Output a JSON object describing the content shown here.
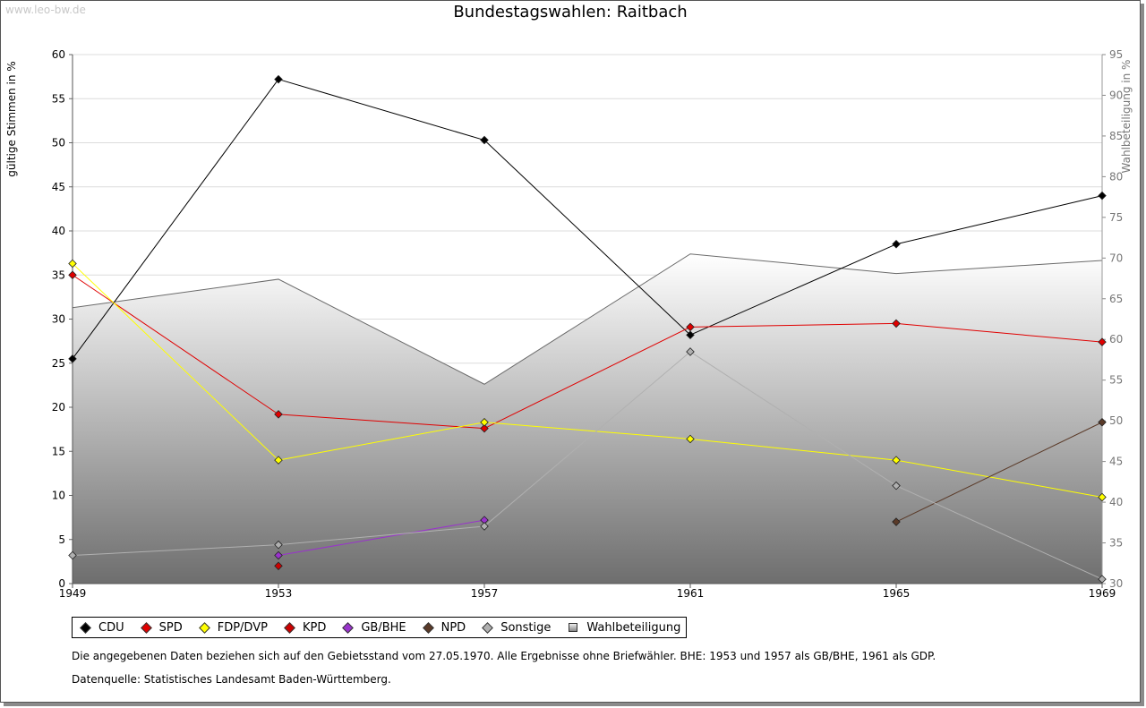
{
  "watermark": "www.leo-bw.de",
  "chart_data": {
    "type": "line",
    "title": "Bundestagswahlen: Raitbach",
    "ylabel": "gültige Stimmen in %",
    "y2label": "Wahlbeteiligung in %",
    "x": [
      1949,
      1953,
      1957,
      1961,
      1965,
      1969
    ],
    "ylim": [
      0,
      60
    ],
    "y2lim": [
      30,
      95
    ],
    "yticks": [
      0,
      5,
      10,
      15,
      20,
      25,
      30,
      35,
      40,
      45,
      50,
      55,
      60
    ],
    "y2ticks": [
      30,
      35,
      40,
      45,
      50,
      55,
      60,
      65,
      70,
      75,
      80,
      85,
      90,
      95
    ],
    "series": [
      {
        "name": "CDU",
        "color": "#000000",
        "values": [
          25.5,
          57.2,
          50.3,
          28.2,
          38.5,
          44.0
        ]
      },
      {
        "name": "SPD",
        "color": "#e00000",
        "values": [
          35.0,
          19.2,
          17.6,
          29.1,
          29.5,
          27.4
        ]
      },
      {
        "name": "FDP/DVP",
        "color": "#ffff00",
        "values": [
          36.3,
          14.0,
          18.3,
          16.4,
          14.0,
          9.8
        ]
      },
      {
        "name": "KPD",
        "color": "#cc0000",
        "values": [
          null,
          2.0,
          null,
          null,
          null,
          null
        ]
      },
      {
        "name": "GB/BHE",
        "color": "#9933cc",
        "values": [
          null,
          3.2,
          7.2,
          null,
          null,
          null
        ]
      },
      {
        "name": "NPD",
        "color": "#5a3a28",
        "values": [
          null,
          null,
          null,
          null,
          7.0,
          18.3
        ]
      },
      {
        "name": "Sonstige",
        "color": "#b0b0b0",
        "values": [
          3.2,
          4.4,
          6.5,
          26.3,
          11.1,
          0.5
        ]
      }
    ],
    "turnout": {
      "name": "Wahlbeteiligung",
      "axis": "right",
      "values": [
        63.9,
        67.4,
        54.5,
        70.5,
        68.1,
        69.7
      ]
    }
  },
  "legend": [
    "CDU",
    "SPD",
    "FDP/DVP",
    "KPD",
    "GB/BHE",
    "NPD",
    "Sonstige",
    "Wahlbeteiligung"
  ],
  "note": "Die angegebenen Daten beziehen sich auf den Gebietsstand vom 27.05.1970. Alle Ergebnisse ohne Briefwähler. BHE: 1953 und 1957 als GB/BHE, 1961 als GDP.",
  "source": "Datenquelle: Statistisches Landesamt Baden-Württemberg."
}
